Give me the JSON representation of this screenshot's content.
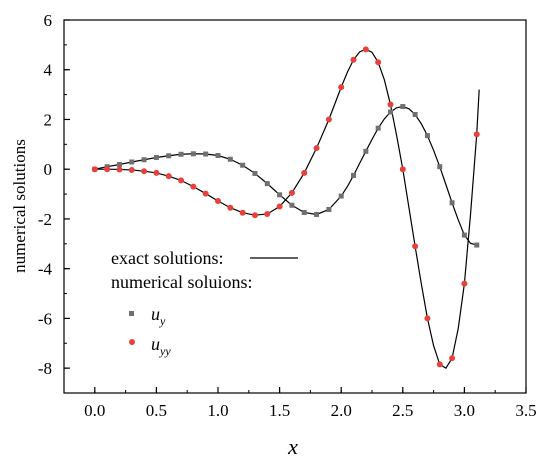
{
  "chart_data": {
    "type": "scatter",
    "title": "",
    "xlabel": "x",
    "ylabel": "numerical solutions",
    "xlim": [
      -0.25,
      3.5
    ],
    "ylim": [
      -9,
      6
    ],
    "x_ticks": [
      "0.0",
      "0.5",
      "1.0",
      "1.5",
      "2.0",
      "2.5",
      "3.0",
      "3.5"
    ],
    "y_ticks": [
      "6",
      "4",
      "2",
      "0",
      "-2",
      "-4",
      "-6",
      "-8"
    ],
    "grid": false,
    "legend_position": "lower-left",
    "legend": {
      "exact_label": "exact solutions:",
      "numerical_label": "numerical soluions:",
      "uy_label": "u",
      "uy_sub": "y",
      "uyy_label": "u",
      "uyy_sub": "yy"
    },
    "series": [
      {
        "name": "u_y",
        "marker": "square",
        "color": "#707070",
        "x": [
          0.0,
          0.1,
          0.2,
          0.3,
          0.4,
          0.5,
          0.6,
          0.7,
          0.8,
          0.9,
          1.0,
          1.1,
          1.2,
          1.3,
          1.4,
          1.5,
          1.6,
          1.7,
          1.8,
          1.9,
          2.0,
          2.1,
          2.2,
          2.3,
          2.4,
          2.5,
          2.6,
          2.7,
          2.8,
          2.9,
          3.0,
          3.1
        ],
        "y": [
          0.0,
          0.1,
          0.19,
          0.29,
          0.38,
          0.47,
          0.54,
          0.6,
          0.62,
          0.61,
          0.55,
          0.4,
          0.16,
          -0.17,
          -0.58,
          -1.03,
          -1.45,
          -1.74,
          -1.82,
          -1.62,
          -1.08,
          -0.25,
          0.72,
          1.65,
          2.3,
          2.52,
          2.2,
          1.35,
          0.1,
          -1.35,
          -2.65,
          -3.05
        ]
      },
      {
        "name": "u_yy",
        "marker": "circle",
        "color": "#e8403a",
        "x": [
          0.0,
          0.1,
          0.2,
          0.3,
          0.4,
          0.5,
          0.6,
          0.7,
          0.8,
          0.9,
          1.0,
          1.1,
          1.2,
          1.3,
          1.4,
          1.5,
          1.6,
          1.7,
          1.8,
          1.9,
          2.0,
          2.1,
          2.2,
          2.3,
          2.4,
          2.5,
          2.6,
          2.7,
          2.8,
          2.9,
          3.0,
          3.1
        ],
        "y": [
          0.0,
          0.0,
          -0.01,
          -0.03,
          -0.08,
          -0.15,
          -0.28,
          -0.45,
          -0.7,
          -0.98,
          -1.28,
          -1.55,
          -1.75,
          -1.85,
          -1.8,
          -1.5,
          -0.95,
          -0.15,
          0.85,
          2.0,
          3.3,
          4.4,
          4.82,
          4.3,
          2.6,
          0.0,
          -3.1,
          -6.0,
          -7.85,
          -7.6,
          -4.6,
          1.4
        ]
      }
    ],
    "exact": {
      "name": "exact",
      "color": "#000000",
      "x": [
        0.0,
        0.1,
        0.2,
        0.3,
        0.4,
        0.5,
        0.6,
        0.7,
        0.8,
        0.9,
        1.0,
        1.1,
        1.2,
        1.3,
        1.4,
        1.5,
        1.6,
        1.7,
        1.8,
        1.9,
        2.0,
        2.05,
        2.1,
        2.15,
        2.2,
        2.25,
        2.3,
        2.35,
        2.4,
        2.45,
        2.5,
        2.55,
        2.6,
        2.65,
        2.7,
        2.75,
        2.8,
        2.85,
        2.9,
        2.95,
        3.0,
        3.05,
        3.1,
        3.12
      ],
      "y1": [
        0.0,
        0.1,
        0.19,
        0.29,
        0.38,
        0.47,
        0.54,
        0.6,
        0.62,
        0.61,
        0.55,
        0.4,
        0.16,
        -0.17,
        -0.58,
        -1.03,
        -1.45,
        -1.74,
        -1.82,
        -1.62,
        -1.08,
        -0.7,
        -0.25,
        0.24,
        0.72,
        1.2,
        1.65,
        2.02,
        2.3,
        2.47,
        2.52,
        2.43,
        2.2,
        1.83,
        1.35,
        0.76,
        0.1,
        -0.62,
        -1.35,
        -2.04,
        -2.65,
        -2.98,
        -3.05,
        -3.05
      ],
      "y2": [
        0.0,
        0.0,
        -0.01,
        -0.03,
        -0.08,
        -0.15,
        -0.28,
        -0.45,
        -0.7,
        -0.98,
        -1.28,
        -1.55,
        -1.75,
        -1.85,
        -1.8,
        -1.5,
        -0.95,
        -0.15,
        0.85,
        2.0,
        3.3,
        3.9,
        4.4,
        4.72,
        4.82,
        4.7,
        4.3,
        3.6,
        2.6,
        1.35,
        0.0,
        -1.55,
        -3.1,
        -4.6,
        -6.0,
        -7.1,
        -7.85,
        -8.0,
        -7.6,
        -6.4,
        -4.6,
        -1.8,
        1.4,
        3.2
      ]
    }
  }
}
